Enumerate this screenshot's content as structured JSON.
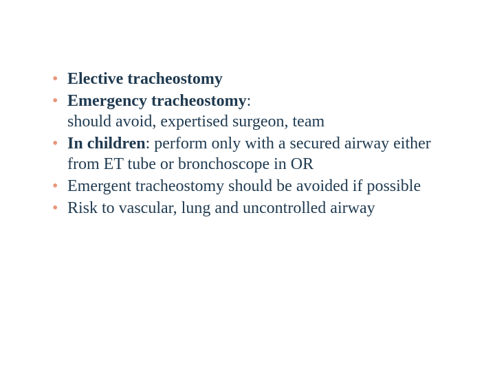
{
  "colors": {
    "text": "#1f3a50",
    "bullet": "#e9967a",
    "background": "#ffffff"
  },
  "font": {
    "family": "Georgia, 'Times New Roman', serif",
    "size_pt": 24
  },
  "bullets": {
    "b0_bold": "Elective tracheostomy",
    "b1_bold": "Emergency tracheostomy",
    "b1_colon": ":",
    "b1_body": "should avoid, expertised surgeon, team",
    "b2_bold": "In children",
    "b2_rest": ": perform only with a secured airway either from ET tube or bronchoscope in OR",
    "b3": "Emergent tracheostomy should be avoided if possible",
    "b4": "Risk to vascular, lung and uncontrolled airway"
  }
}
